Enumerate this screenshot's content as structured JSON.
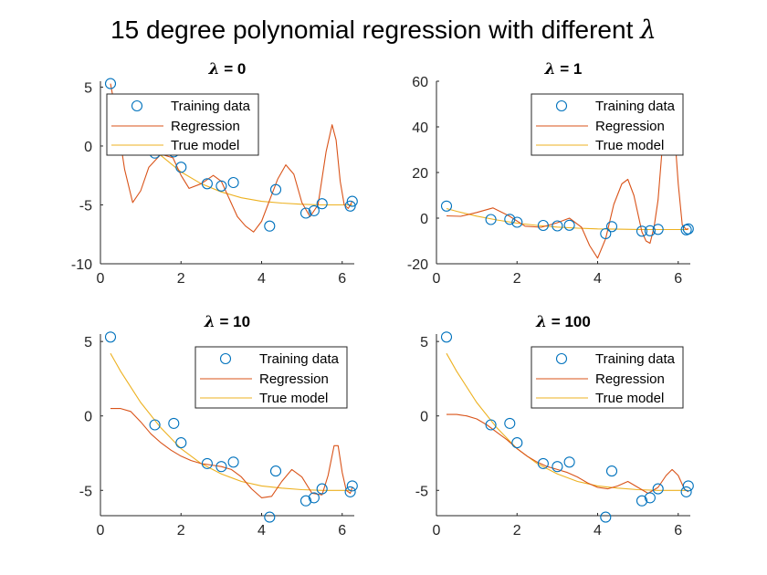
{
  "figure": {
    "title_prefix": "15 degree polynomial regression with different ",
    "title_symbol": "λ"
  },
  "colors": {
    "training": "#0072BD",
    "regression": "#D95319",
    "true_model": "#EDB120",
    "axis": "#262626"
  },
  "legend_labels": [
    "Training data",
    "Regression",
    "True model"
  ],
  "training_points": {
    "x": [
      0.25,
      1.35,
      1.82,
      2.0,
      2.65,
      3.0,
      3.3,
      4.2,
      4.35,
      5.1,
      5.3,
      5.5,
      6.2,
      6.25
    ],
    "y": [
      5.3,
      -0.6,
      -0.5,
      -1.8,
      -3.2,
      -3.4,
      -3.1,
      -6.8,
      -3.7,
      -5.7,
      -5.5,
      -4.9,
      -5.1,
      -4.7
    ]
  },
  "true_model": {
    "x": [
      0.25,
      0.5,
      1.0,
      1.5,
      2.0,
      2.5,
      3.0,
      3.5,
      4.0,
      4.5,
      5.0,
      5.5,
      6.0,
      6.25
    ],
    "y": [
      4.2,
      3.0,
      0.9,
      -0.8,
      -2.2,
      -3.2,
      -3.9,
      -4.4,
      -4.7,
      -4.85,
      -4.95,
      -5.0,
      -5.0,
      -5.0
    ]
  },
  "chart_data": [
    {
      "type": "line",
      "title_symbol": "λ",
      "title_value": " = 0",
      "xlim": [
        0,
        6.3
      ],
      "ylim": [
        -10,
        5.5
      ],
      "xticks": [
        0,
        2,
        4,
        6
      ],
      "yticks": [
        -10,
        -5,
        0,
        5
      ],
      "legend": "top-left",
      "regression": {
        "x": [
          0.25,
          0.4,
          0.6,
          0.8,
          1.0,
          1.2,
          1.5,
          1.8,
          2.0,
          2.2,
          2.5,
          2.8,
          3.0,
          3.2,
          3.4,
          3.6,
          3.8,
          4.0,
          4.2,
          4.4,
          4.6,
          4.8,
          5.0,
          5.2,
          5.4,
          5.6,
          5.75,
          5.85,
          5.95,
          6.05,
          6.15,
          6.25
        ],
        "y": [
          5.3,
          2.5,
          -2.0,
          -4.8,
          -3.8,
          -1.8,
          -0.7,
          -1.0,
          -2.5,
          -3.6,
          -3.2,
          -2.5,
          -3.0,
          -4.5,
          -6.0,
          -6.8,
          -7.3,
          -6.4,
          -4.6,
          -2.8,
          -1.6,
          -2.4,
          -4.8,
          -6.0,
          -5.0,
          -0.5,
          1.8,
          0.5,
          -3.0,
          -5.0,
          -5.3,
          -4.7
        ]
      }
    },
    {
      "type": "line",
      "title_symbol": "λ",
      "title_value": " = 1",
      "xlim": [
        0,
        6.3
      ],
      "ylim": [
        -20,
        60
      ],
      "xticks": [
        0,
        2,
        4,
        6
      ],
      "yticks": [
        -20,
        0,
        20,
        40,
        60
      ],
      "legend": "top-right",
      "regression": {
        "x": [
          0.25,
          0.6,
          1.0,
          1.4,
          1.8,
          2.2,
          2.6,
          3.0,
          3.3,
          3.6,
          3.8,
          4.0,
          4.2,
          4.4,
          4.6,
          4.75,
          4.9,
          5.1,
          5.2,
          5.3,
          5.4,
          5.5,
          5.6,
          5.7,
          5.8,
          5.9,
          6.0,
          6.1,
          6.2,
          6.25
        ],
        "y": [
          1.0,
          0.8,
          2.5,
          4.5,
          1.0,
          -3.5,
          -4.0,
          -2.0,
          0.0,
          -4.0,
          -12.0,
          -17.5,
          -9.0,
          6.0,
          15.0,
          17.0,
          10.0,
          -6.0,
          -10.0,
          -11.0,
          -4.0,
          8.0,
          30.0,
          48.0,
          52.0,
          40.0,
          15.0,
          -3.0,
          -5.0,
          -4.5
        ]
      }
    },
    {
      "type": "line",
      "title_symbol": "λ",
      "title_value": " = 10",
      "xlim": [
        0,
        6.3
      ],
      "ylim": [
        -6.7,
        5.5
      ],
      "xticks": [
        0,
        2,
        4,
        6
      ],
      "yticks": [
        -5,
        0,
        5
      ],
      "legend": "top-right",
      "regression": {
        "x": [
          0.25,
          0.5,
          0.75,
          1.0,
          1.25,
          1.5,
          1.75,
          2.0,
          2.25,
          2.5,
          2.75,
          3.0,
          3.25,
          3.5,
          3.75,
          4.0,
          4.25,
          4.5,
          4.75,
          5.0,
          5.25,
          5.5,
          5.65,
          5.8,
          5.9,
          6.0,
          6.1,
          6.2,
          6.25
        ],
        "y": [
          0.5,
          0.5,
          0.3,
          -0.4,
          -1.2,
          -1.8,
          -2.3,
          -2.7,
          -3.0,
          -3.2,
          -3.3,
          -3.4,
          -3.6,
          -4.1,
          -4.9,
          -5.5,
          -5.4,
          -4.4,
          -3.6,
          -4.1,
          -5.2,
          -5.3,
          -4.0,
          -2.0,
          -2.0,
          -3.8,
          -5.0,
          -5.2,
          -4.8
        ]
      }
    },
    {
      "type": "line",
      "title_symbol": "λ",
      "title_value": " = 100",
      "xlim": [
        0,
        6.3
      ],
      "ylim": [
        -6.7,
        5.5
      ],
      "xticks": [
        0,
        2,
        4,
        6
      ],
      "yticks": [
        -5,
        0,
        5
      ],
      "legend": "top-right",
      "regression": {
        "x": [
          0.25,
          0.5,
          0.75,
          1.0,
          1.25,
          1.5,
          1.75,
          2.0,
          2.25,
          2.5,
          2.75,
          3.0,
          3.25,
          3.5,
          3.75,
          4.0,
          4.25,
          4.5,
          4.75,
          5.0,
          5.25,
          5.5,
          5.7,
          5.85,
          6.0,
          6.15,
          6.25
        ],
        "y": [
          0.1,
          0.1,
          0.0,
          -0.2,
          -0.6,
          -1.1,
          -1.6,
          -2.2,
          -2.7,
          -3.1,
          -3.4,
          -3.6,
          -3.8,
          -4.1,
          -4.5,
          -4.8,
          -4.9,
          -4.7,
          -4.4,
          -4.8,
          -5.2,
          -4.8,
          -4.0,
          -3.6,
          -4.0,
          -4.9,
          -5.1
        ]
      }
    }
  ]
}
